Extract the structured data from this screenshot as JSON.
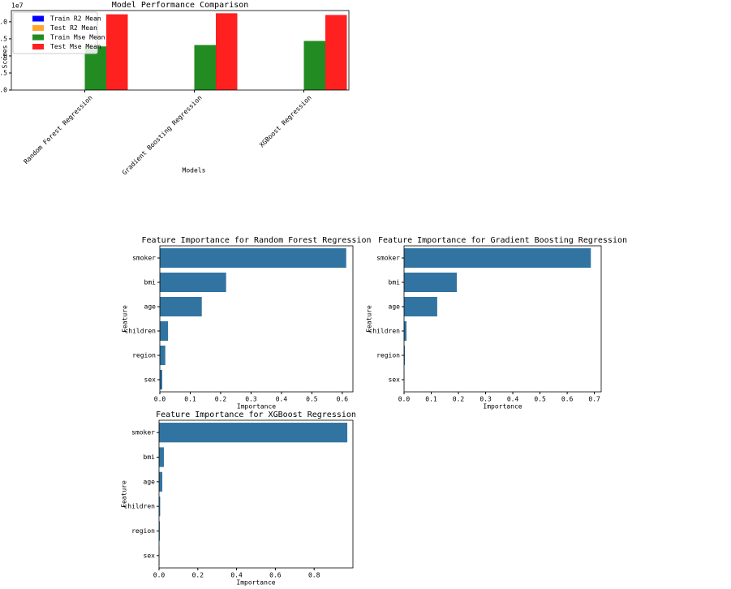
{
  "chart_data": [
    {
      "type": "bar",
      "title": "Model Performance Comparison",
      "x_label": "Models",
      "y_label": "Scores",
      "offset_label": "1e7",
      "categories": [
        "Random Forest Regression",
        "Gradient Boosting Regression",
        "XGBoost Regression"
      ],
      "series": [
        {
          "name": "Train R2 Mean",
          "color": "#0000ff",
          "values": [
            0,
            0,
            0
          ]
        },
        {
          "name": "Test R2 Mean",
          "color": "#ffa530",
          "values": [
            0,
            0,
            0
          ]
        },
        {
          "name": "Train Mse Mean",
          "color": "#228b22",
          "values": [
            1.28,
            1.32,
            1.44
          ]
        },
        {
          "name": "Test Mse Mean",
          "color": "#ff2020",
          "values": [
            2.22,
            2.25,
            2.2
          ]
        }
      ],
      "ylim": [
        0,
        2.33
      ],
      "yticks": [
        {
          "value": 0,
          "label": "0.0"
        },
        0.5,
        {
          "value": 1,
          "label": "1.0"
        },
        1.5,
        {
          "value": 2,
          "label": "2.0"
        }
      ],
      "legend": "upper left"
    },
    {
      "type": "barh",
      "title": "Feature Importance for Random Forest Regression",
      "x_label": "Importance",
      "y_label": "Feature",
      "categories": [
        "smoker",
        "bmi",
        "age",
        "children",
        "region",
        "sex"
      ],
      "color": "#3274a1",
      "values": [
        0.613,
        0.218,
        0.138,
        0.027,
        0.018,
        0.008
      ],
      "xlim": [
        0,
        0.635
      ],
      "xticks": [
        {
          "value": 0,
          "label": "0.0"
        },
        0.1,
        0.2,
        0.3,
        0.4,
        0.5,
        0.6
      ]
    },
    {
      "type": "barh",
      "title": "Feature Importance for Gradient Boosting Regression",
      "x_label": "Importance",
      "y_label": "Feature",
      "categories": [
        "smoker",
        "bmi",
        "age",
        "children",
        "region",
        "sex"
      ],
      "color": "#3274a1",
      "values": [
        0.687,
        0.194,
        0.122,
        0.009,
        0.003,
        0.001
      ],
      "xlim": [
        0,
        0.725
      ],
      "xticks": [
        {
          "value": 0,
          "label": "0.0"
        },
        0.1,
        0.2,
        0.3,
        0.4,
        0.5,
        0.6,
        0.7
      ]
    },
    {
      "type": "barh",
      "title": "Feature Importance for XGBoost Regression",
      "x_label": "Importance",
      "y_label": "Feature",
      "categories": [
        "smoker",
        "bmi",
        "age",
        "children",
        "region",
        "sex"
      ],
      "color": "#3274a1",
      "values": [
        0.971,
        0.025,
        0.017,
        0.006,
        0.004,
        0.002
      ],
      "xlim": [
        0,
        1.0
      ],
      "xticks": [
        {
          "value": 0,
          "label": "0.0"
        },
        0.2,
        0.4,
        0.6,
        0.8
      ]
    }
  ]
}
